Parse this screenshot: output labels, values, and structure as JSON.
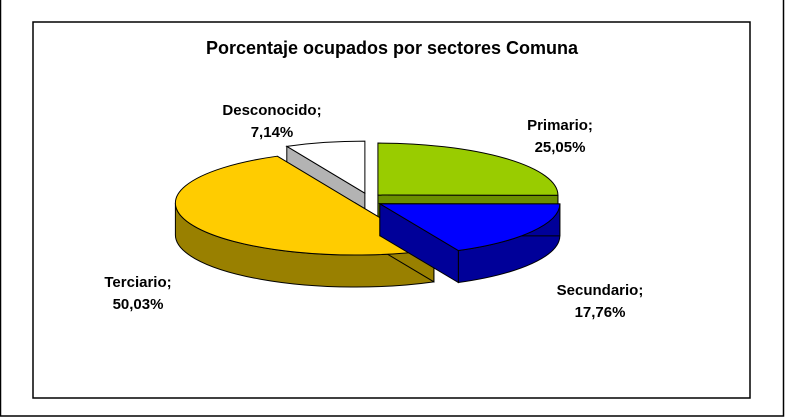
{
  "chart_data": {
    "type": "pie3d",
    "title": "Porcentaje ocupados por sectores Comuna",
    "categories": [
      "Primario;",
      "Secundario;",
      "Terciario;",
      "Desconocido;"
    ],
    "values": [
      25.05,
      17.76,
      50.03,
      7.14
    ],
    "value_labels": [
      "25,05%",
      "17,76%",
      "50,03%",
      "7,14%"
    ],
    "colors": [
      "#99cc00",
      "#0000ff",
      "#ffcc00",
      "#ffffff"
    ],
    "side_colors": [
      "#6b8f00",
      "#000099",
      "#998000",
      "#b3b3b3"
    ]
  }
}
